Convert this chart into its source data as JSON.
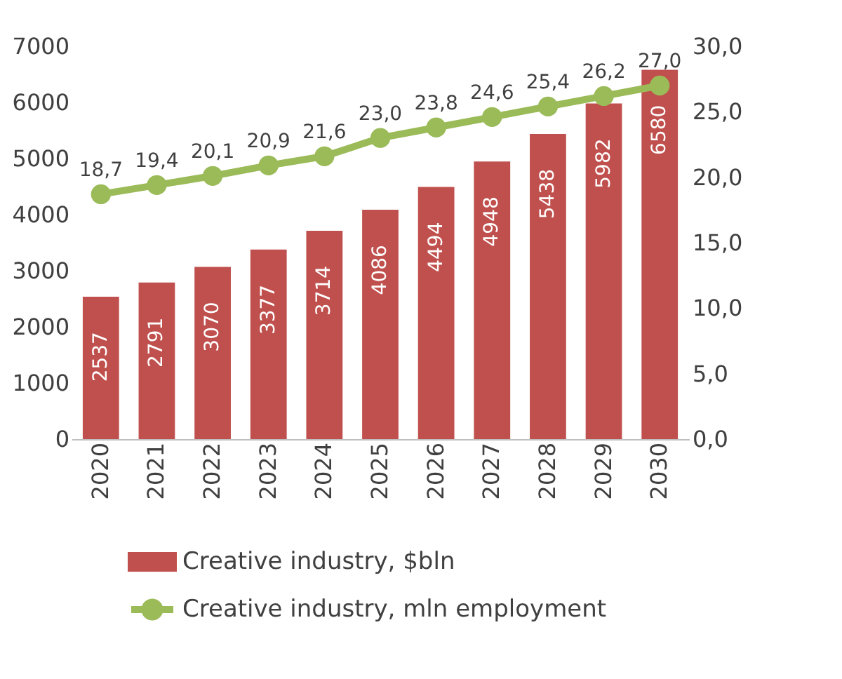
{
  "chart_data": {
    "type": "bar",
    "categories": [
      "2020",
      "2021",
      "2022",
      "2023",
      "2024",
      "2025",
      "2026",
      "2027",
      "2028",
      "2029",
      "2030"
    ],
    "series": [
      {
        "name": "Creative industry, $bln",
        "type": "bar",
        "color": "#c0504d",
        "values": [
          2537,
          2791,
          3070,
          3377,
          3714,
          4086,
          4494,
          4948,
          5438,
          5982,
          6580
        ],
        "value_labels": [
          "2537",
          "2791",
          "3070",
          "3377",
          "3714",
          "4086",
          "4494",
          "4948",
          "5438",
          "5982",
          "6580"
        ]
      },
      {
        "name": "Creative industry, mln employment",
        "type": "line",
        "axis": "y2",
        "color": "#9bbb59",
        "marker": "circle",
        "values": [
          18.7,
          19.4,
          20.1,
          20.9,
          21.6,
          23.0,
          23.8,
          24.6,
          25.4,
          26.2,
          27.0
        ],
        "value_labels": [
          "18,7",
          "19,4",
          "20,1",
          "20,9",
          "21,6",
          "23,0",
          "23,8",
          "24,6",
          "25,4",
          "26,2",
          "27,0"
        ]
      }
    ],
    "ylim": [
      0,
      7000
    ],
    "yticks": [
      0,
      1000,
      2000,
      3000,
      4000,
      5000,
      6000,
      7000
    ],
    "y2lim": [
      0,
      30
    ],
    "y2ticks": [
      {
        "value": 0,
        "label": "0,0"
      },
      {
        "value": 5,
        "label": "5,0"
      },
      {
        "value": 10,
        "label": "10,0"
      },
      {
        "value": 15,
        "label": "15,0"
      },
      {
        "value": 20,
        "label": "20,0"
      },
      {
        "value": 25,
        "label": "25,0"
      },
      {
        "value": 30,
        "label": "30,0"
      }
    ],
    "grid": false,
    "legend": "bottom"
  }
}
